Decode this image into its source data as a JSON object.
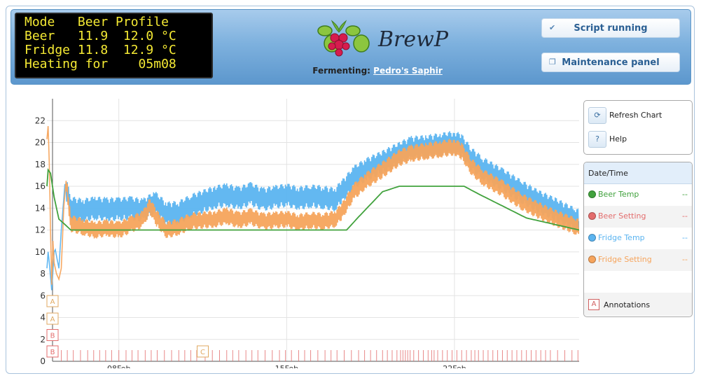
{
  "lcd": {
    "lines": [
      "Mode   Beer Profile",
      "Beer   11.9  12.0 °C",
      "Fridge 11.8  12.9 °C",
      "Heating for    05m08"
    ]
  },
  "header": {
    "logo_text": "BrewPi",
    "fermenting_label": "Fermenting:",
    "beer_name": "Pedro's Saphir",
    "script_button": "Script running",
    "maintenance_button": "Maintenance panel"
  },
  "panel": {
    "refresh_label": "Refresh Chart",
    "help_label": "Help",
    "help_glyph": "?"
  },
  "legend": {
    "header": "Date/Time",
    "items": [
      {
        "name": "Beer Temp",
        "value": "--",
        "color": "#41a23d"
      },
      {
        "name": "Beer Setting",
        "value": "--",
        "color": "#e36c6c"
      },
      {
        "name": "Fridge Temp",
        "value": "--",
        "color": "#5bb4f0"
      },
      {
        "name": "Fridge Setting",
        "value": "--",
        "color": "#f6a45c"
      }
    ],
    "annotations_label": "Annotations",
    "annotations_glyph": "A"
  },
  "colors": {
    "beer_temp": "#41a23d",
    "beer_setting": "#e36c6c",
    "fridge_temp": "#5bb4f0",
    "fridge_setting": "#f6a45c",
    "annotation": "#e36c6c",
    "annotation_c": "#e0a860"
  },
  "chart_data": {
    "type": "line",
    "xlabel": "",
    "ylabel": "",
    "x_range_days": [
      5.0,
      27.2
    ],
    "x_ticks": [
      {
        "day": 8,
        "label": "08Feb"
      },
      {
        "day": 15,
        "label": "15Feb"
      },
      {
        "day": 22,
        "label": "22Feb"
      }
    ],
    "y_range": [
      0,
      24
    ],
    "y_ticks": [
      0,
      2,
      4,
      6,
      8,
      10,
      12,
      14,
      16,
      18,
      20,
      22
    ],
    "grid": true,
    "series": [
      {
        "name": "Beer Temp",
        "color": "#41a23d",
        "x": [
          5.0,
          5.05,
          5.15,
          5.3,
          5.5,
          6.0,
          7.0,
          9.0,
          10.0,
          12.0,
          14.0,
          15.0,
          16.0,
          17.0,
          17.5,
          18.0,
          19.0,
          19.7,
          20.0,
          21.0,
          22.0,
          22.4,
          23.0,
          24.0,
          25.0,
          26.0,
          27.0,
          27.2
        ],
        "y": [
          16.0,
          17.5,
          17.2,
          15.0,
          13.0,
          12.0,
          12.0,
          12.0,
          12.0,
          12.0,
          12.0,
          12.0,
          12.0,
          12.0,
          12.0,
          13.2,
          15.5,
          16.0,
          16.0,
          16.0,
          16.0,
          16.0,
          15.3,
          14.2,
          13.1,
          12.6,
          12.1,
          12.0
        ]
      },
      {
        "name": "Fridge Temp",
        "color": "#5bb4f0",
        "x": [
          5.0,
          5.05,
          5.1,
          5.2,
          5.3,
          5.35,
          5.5,
          5.6,
          5.75,
          6.0,
          6.5,
          7.0,
          7.5,
          8.0,
          8.5,
          9.0,
          9.5,
          10.0,
          10.5,
          11.0,
          12.0,
          12.5,
          13.0,
          13.5,
          14.0,
          14.5,
          15.0,
          15.5,
          16.0,
          16.5,
          17.0,
          17.3,
          17.8,
          18.3,
          19.0,
          19.7,
          20.2,
          20.8,
          21.4,
          22.0,
          22.3,
          22.7,
          23.2,
          24.0,
          24.8,
          25.5,
          26.2,
          27.0,
          27.2
        ],
        "y": [
          8.5,
          10.0,
          9.0,
          6.5,
          10.0,
          10.2,
          8.5,
          12.0,
          16.2,
          14.0,
          13.8,
          14.0,
          13.9,
          13.9,
          14.0,
          13.8,
          14.5,
          13.5,
          13.6,
          14.2,
          15.0,
          15.2,
          14.9,
          15.3,
          14.8,
          15.0,
          15.2,
          14.9,
          15.1,
          15.0,
          14.8,
          15.5,
          16.8,
          17.5,
          18.2,
          19.0,
          19.5,
          19.6,
          19.8,
          20.0,
          19.7,
          18.5,
          17.6,
          16.6,
          15.5,
          14.6,
          13.9,
          13.0,
          12.8
        ]
      },
      {
        "name": "Fridge Setting",
        "color": "#f6a45c",
        "x": [
          5.0,
          5.05,
          5.1,
          5.15,
          5.2,
          5.25,
          5.3,
          5.4,
          5.5,
          5.6,
          5.7,
          5.8,
          6.0,
          6.5,
          7.0,
          7.5,
          8.0,
          8.5,
          9.0,
          9.3,
          9.6,
          10.0,
          10.5,
          11.0,
          12.0,
          12.5,
          13.0,
          13.5,
          14.0,
          14.5,
          15.0,
          15.5,
          16.0,
          16.5,
          17.0,
          17.3,
          17.8,
          18.3,
          19.0,
          19.7,
          20.2,
          20.8,
          21.4,
          22.0,
          22.3,
          22.7,
          23.2,
          24.0,
          24.8,
          25.5,
          26.2,
          27.0,
          27.2
        ],
        "y": [
          20.3,
          21.5,
          18.0,
          12.0,
          7.0,
          11.0,
          9.0,
          8.0,
          7.5,
          8.5,
          14.0,
          16.5,
          12.6,
          12.3,
          12.0,
          12.2,
          12.0,
          12.5,
          13.0,
          14.2,
          13.0,
          12.0,
          12.3,
          12.8,
          13.0,
          13.3,
          12.9,
          13.2,
          12.8,
          12.9,
          13.0,
          12.7,
          12.9,
          12.8,
          13.0,
          13.7,
          15.5,
          16.5,
          17.5,
          18.6,
          19.0,
          19.2,
          19.4,
          19.6,
          19.2,
          17.8,
          16.8,
          15.8,
          14.6,
          13.8,
          13.1,
          12.4,
          12.2
        ]
      }
    ],
    "annotations": [
      {
        "label": "A",
        "y": 5.5
      },
      {
        "label": "A",
        "y": 3.9
      },
      {
        "label": "B",
        "y": 2.4
      },
      {
        "label": "B",
        "y": 0.9
      },
      {
        "label": "C",
        "day": 11.5
      }
    ],
    "event_mark_days": [
      5.6,
      5.85,
      6.1,
      6.4,
      6.7,
      6.95,
      7.2,
      7.45,
      7.7,
      8.0,
      8.3,
      8.55,
      8.8,
      9.1,
      9.35,
      9.6,
      9.9,
      10.2,
      10.5,
      10.75,
      11.0,
      11.25,
      11.6,
      11.9,
      12.2,
      12.5,
      12.75,
      13.0,
      13.3,
      13.55,
      13.8,
      14.1,
      14.4,
      14.7,
      14.95,
      15.2,
      15.5,
      15.75,
      16.0,
      16.3,
      16.6,
      16.85,
      17.1,
      17.4,
      17.7,
      18.0,
      18.25,
      18.5,
      18.75,
      19.0,
      19.2,
      19.4,
      19.6,
      19.75,
      19.85,
      19.95,
      20.05,
      20.15,
      20.3,
      20.5,
      20.7,
      20.9,
      21.05,
      21.15,
      21.3,
      21.5,
      21.7,
      21.9,
      22.1,
      22.3,
      22.5,
      22.7,
      22.85,
      23.0,
      23.2,
      23.4,
      23.6,
      23.8,
      24.0,
      24.2,
      24.4,
      24.6,
      24.8,
      25.0,
      25.2,
      25.4,
      25.6,
      25.8,
      26.0,
      26.3,
      26.6,
      26.9,
      27.15
    ]
  }
}
